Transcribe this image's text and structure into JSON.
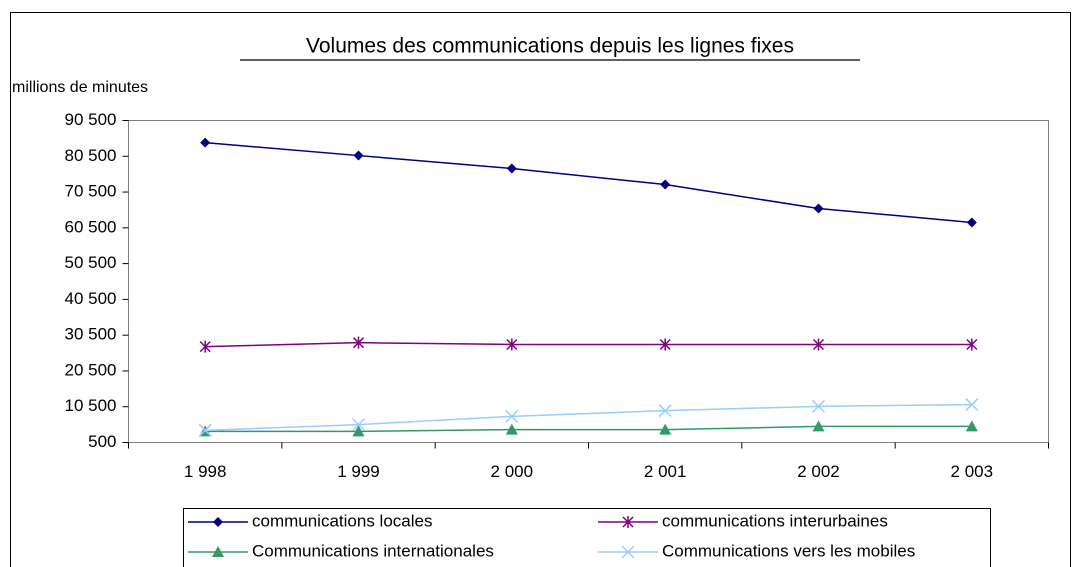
{
  "chart_data": {
    "type": "line",
    "title": "Volumes des communications depuis les lignes fixes",
    "y_label": "millions de minutes",
    "categories": [
      "1 998",
      "1 999",
      "2 000",
      "2 001",
      "2 002",
      "2 003"
    ],
    "series": [
      {
        "name": "communications locales",
        "color": "#000080",
        "marker": "diamond",
        "values": [
          84300,
          80700,
          77100,
          72600,
          65900,
          62000
        ]
      },
      {
        "name": "communications interurbaines",
        "color": "#800080",
        "marker": "asterisk",
        "values": [
          27300,
          28400,
          27900,
          27900,
          27900,
          27900
        ]
      },
      {
        "name": "Communications internationales",
        "color": "#339966",
        "marker": "triangle",
        "values": [
          3600,
          3600,
          4100,
          4100,
          5000,
          5000
        ]
      },
      {
        "name": "Communications vers les mobiles",
        "color": "#99ccff",
        "marker": "x",
        "values": [
          3900,
          5500,
          7800,
          9400,
          10600,
          11100
        ]
      }
    ],
    "ylim": [
      500,
      90500
    ],
    "yticks": [
      500,
      {
        "value": 10500,
        "label": "10 500"
      },
      {
        "value": 20500,
        "label": "20 500"
      },
      {
        "value": 30500,
        "label": "30 500"
      },
      {
        "value": 40500,
        "label": "40 500"
      },
      {
        "value": 50500,
        "label": "50 500"
      },
      {
        "value": 60500,
        "label": "60 500"
      },
      {
        "value": 70500,
        "label": "70 500"
      },
      {
        "value": 80500,
        "label": "80 500"
      },
      {
        "value": 90500,
        "label": "90 500"
      }
    ],
    "grid": false,
    "legend": "bottom"
  }
}
